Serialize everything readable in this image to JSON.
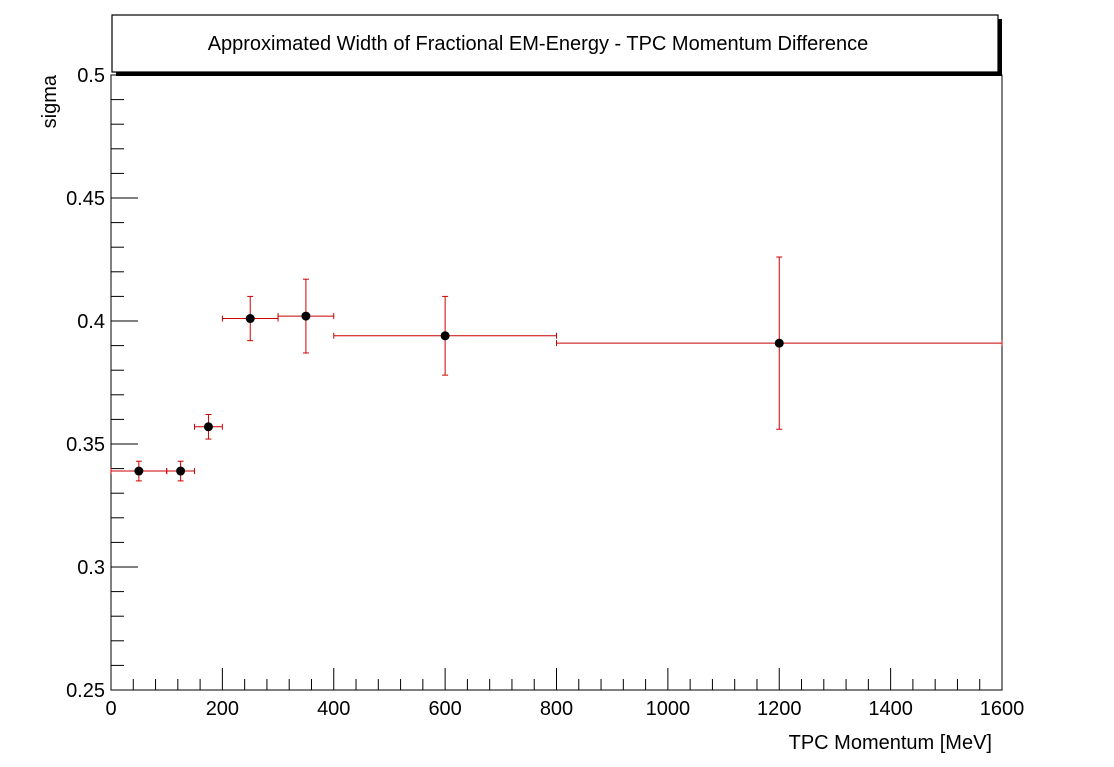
{
  "chart_data": {
    "type": "scatter",
    "title": "Approximated Width of Fractional EM-Energy - TPC Momentum Difference",
    "xlabel": "TPC Momentum [MeV]",
    "ylabel": "sigma",
    "xlim": [
      0,
      1600
    ],
    "ylim": [
      0.25,
      0.5
    ],
    "x_ticks": [
      0,
      200,
      400,
      600,
      800,
      1000,
      1200,
      1400,
      1600
    ],
    "x_tick_labels": [
      "0",
      "200",
      "400",
      "600",
      "800",
      "1000",
      "1200",
      "1400",
      "1600"
    ],
    "y_ticks": [
      0.25,
      0.3,
      0.35,
      0.4,
      0.45,
      0.5
    ],
    "y_tick_labels": [
      "0.25",
      "0.3",
      "0.35",
      "0.4",
      "0.45",
      "0.5"
    ],
    "grid": false,
    "marker_color": "#000000",
    "error_bar_color": "#cc0000",
    "points": [
      {
        "x": 50,
        "y": 0.339,
        "x_lo": 0,
        "x_hi": 100,
        "y_err": 0.004
      },
      {
        "x": 125,
        "y": 0.339,
        "x_lo": 100,
        "x_hi": 150,
        "y_err": 0.004
      },
      {
        "x": 175,
        "y": 0.357,
        "x_lo": 150,
        "x_hi": 200,
        "y_err": 0.005
      },
      {
        "x": 250,
        "y": 0.401,
        "x_lo": 200,
        "x_hi": 300,
        "y_err": 0.009
      },
      {
        "x": 350,
        "y": 0.402,
        "x_lo": 300,
        "x_hi": 400,
        "y_err": 0.015
      },
      {
        "x": 600,
        "y": 0.394,
        "x_lo": 400,
        "x_hi": 800,
        "y_err": 0.016
      },
      {
        "x": 1200,
        "y": 0.391,
        "x_lo": 800,
        "x_hi": 1600,
        "y_err": 0.035
      }
    ]
  }
}
